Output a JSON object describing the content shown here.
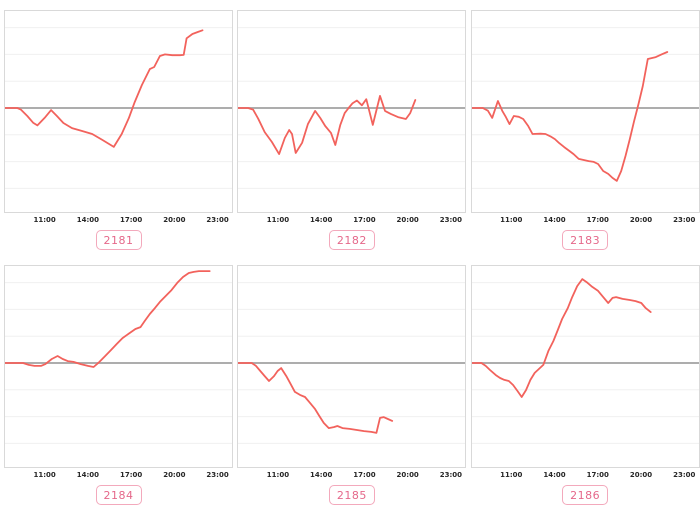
{
  "page": {
    "background": "#ffffff",
    "grid": "2 rows x 3 columns of sparkline charts"
  },
  "style": {
    "line_color": "#f2625c",
    "zero_line_color": "#adadad",
    "grid_line_color": "#f0f0f0",
    "plot_border_color": "#d9d9d9",
    "tick_label_color": "#262626",
    "badge_text_color": "#e5688a",
    "badge_border_color": "#f3a9bc"
  },
  "axis": {
    "tick_labels": [
      "11:00",
      "14:00",
      "17:00",
      "20:00",
      "23:00"
    ],
    "tick_hours": [
      11,
      14,
      17,
      20,
      23
    ],
    "range_hours": [
      8.25,
      24.0
    ],
    "note": "shared x-axis on all six charts; horizontal gridlines on; darker horizontal zero line"
  },
  "chart_data": [
    {
      "type": "line",
      "badge_label": "2181",
      "x_unit": "time of day (hours)",
      "y_unit": "relative value (zero line = 0, one gridline = 1)",
      "ylim": [
        -3.9,
        3.6
      ],
      "points": [
        [
          8.25,
          0
        ],
        [
          9.1,
          0
        ],
        [
          9.35,
          -0.06
        ],
        [
          9.8,
          -0.3
        ],
        [
          10.2,
          -0.55
        ],
        [
          10.5,
          -0.65
        ],
        [
          11.0,
          -0.37
        ],
        [
          11.45,
          -0.08
        ],
        [
          11.85,
          -0.3
        ],
        [
          12.3,
          -0.56
        ],
        [
          12.9,
          -0.75
        ],
        [
          13.6,
          -0.86
        ],
        [
          14.3,
          -0.97
        ],
        [
          15.0,
          -1.19
        ],
        [
          15.8,
          -1.45
        ],
        [
          16.35,
          -0.97
        ],
        [
          16.85,
          -0.37
        ],
        [
          17.25,
          0.22
        ],
        [
          17.75,
          0.86
        ],
        [
          18.3,
          1.45
        ],
        [
          18.6,
          1.53
        ],
        [
          19.0,
          1.94
        ],
        [
          19.35,
          2.0
        ],
        [
          19.85,
          1.97
        ],
        [
          20.4,
          1.97
        ],
        [
          20.65,
          1.98
        ],
        [
          20.85,
          2.6
        ],
        [
          21.25,
          2.76
        ],
        [
          21.65,
          2.84
        ],
        [
          21.95,
          2.9
        ]
      ]
    },
    {
      "type": "line",
      "badge_label": "2182",
      "x_unit": "time of day (hours)",
      "y_unit": "relative value (zero line = 0, one gridline = 1)",
      "ylim": [
        -3.9,
        3.6
      ],
      "points": [
        [
          8.25,
          0
        ],
        [
          8.95,
          0
        ],
        [
          9.3,
          -0.06
        ],
        [
          9.65,
          -0.4
        ],
        [
          10.1,
          -0.9
        ],
        [
          10.6,
          -1.27
        ],
        [
          11.1,
          -1.72
        ],
        [
          11.5,
          -1.12
        ],
        [
          11.8,
          -0.82
        ],
        [
          12.0,
          -0.97
        ],
        [
          12.25,
          -1.68
        ],
        [
          12.7,
          -1.3
        ],
        [
          13.1,
          -0.6
        ],
        [
          13.6,
          -0.11
        ],
        [
          13.95,
          -0.37
        ],
        [
          14.3,
          -0.67
        ],
        [
          14.7,
          -0.93
        ],
        [
          15.0,
          -1.38
        ],
        [
          15.35,
          -0.63
        ],
        [
          15.65,
          -0.19
        ],
        [
          15.95,
          0.02
        ],
        [
          16.2,
          0.18
        ],
        [
          16.5,
          0.28
        ],
        [
          16.85,
          0.1
        ],
        [
          17.15,
          0.33
        ],
        [
          17.6,
          -0.63
        ],
        [
          18.1,
          0.45
        ],
        [
          18.45,
          -0.11
        ],
        [
          18.85,
          -0.22
        ],
        [
          19.35,
          -0.34
        ],
        [
          19.9,
          -0.41
        ],
        [
          20.2,
          -0.19
        ],
        [
          20.55,
          0.3
        ]
      ]
    },
    {
      "type": "line",
      "badge_label": "2183",
      "x_unit": "time of day (hours)",
      "y_unit": "relative value (zero line = 0, one gridline = 1)",
      "ylim": [
        -3.9,
        3.6
      ],
      "points": [
        [
          8.25,
          0
        ],
        [
          9.0,
          0
        ],
        [
          9.35,
          -0.1
        ],
        [
          9.65,
          -0.37
        ],
        [
          10.05,
          0.26
        ],
        [
          10.35,
          -0.11
        ],
        [
          10.6,
          -0.34
        ],
        [
          10.85,
          -0.6
        ],
        [
          11.15,
          -0.3
        ],
        [
          11.5,
          -0.33
        ],
        [
          11.8,
          -0.41
        ],
        [
          12.15,
          -0.67
        ],
        [
          12.45,
          -0.97
        ],
        [
          13.0,
          -0.96
        ],
        [
          13.35,
          -0.97
        ],
        [
          13.7,
          -1.06
        ],
        [
          14.0,
          -1.16
        ],
        [
          14.3,
          -1.31
        ],
        [
          14.65,
          -1.46
        ],
        [
          15.0,
          -1.6
        ],
        [
          15.3,
          -1.72
        ],
        [
          15.65,
          -1.9
        ],
        [
          16.0,
          -1.94
        ],
        [
          16.35,
          -1.98
        ],
        [
          16.7,
          -2.01
        ],
        [
          17.0,
          -2.09
        ],
        [
          17.35,
          -2.35
        ],
        [
          17.7,
          -2.46
        ],
        [
          18.0,
          -2.61
        ],
        [
          18.3,
          -2.72
        ],
        [
          18.6,
          -2.35
        ],
        [
          18.9,
          -1.79
        ],
        [
          19.2,
          -1.16
        ],
        [
          19.5,
          -0.49
        ],
        [
          19.8,
          0.15
        ],
        [
          20.1,
          0.82
        ],
        [
          20.45,
          1.83
        ],
        [
          21.0,
          1.9
        ],
        [
          21.4,
          2.0
        ],
        [
          21.8,
          2.09
        ]
      ]
    },
    {
      "type": "line",
      "badge_label": "2184",
      "x_unit": "time of day (hours)",
      "y_unit": "relative value (zero line = 0, one gridline = 1)",
      "ylim": [
        -3.9,
        3.6
      ],
      "points": [
        [
          8.25,
          0
        ],
        [
          9.5,
          0
        ],
        [
          9.9,
          -0.07
        ],
        [
          10.3,
          -0.11
        ],
        [
          10.75,
          -0.11
        ],
        [
          11.05,
          -0.04
        ],
        [
          11.5,
          0.15
        ],
        [
          11.9,
          0.26
        ],
        [
          12.25,
          0.15
        ],
        [
          12.6,
          0.07
        ],
        [
          13.0,
          0.04
        ],
        [
          13.5,
          -0.04
        ],
        [
          14.0,
          -0.11
        ],
        [
          14.4,
          -0.15
        ],
        [
          14.8,
          0.04
        ],
        [
          15.2,
          0.26
        ],
        [
          15.6,
          0.48
        ],
        [
          16.0,
          0.71
        ],
        [
          16.4,
          0.93
        ],
        [
          16.9,
          1.12
        ],
        [
          17.3,
          1.27
        ],
        [
          17.65,
          1.34
        ],
        [
          17.95,
          1.57
        ],
        [
          18.3,
          1.83
        ],
        [
          18.65,
          2.05
        ],
        [
          19.0,
          2.28
        ],
        [
          19.4,
          2.5
        ],
        [
          19.8,
          2.72
        ],
        [
          20.2,
          2.99
        ],
        [
          20.6,
          3.21
        ],
        [
          21.0,
          3.36
        ],
        [
          21.35,
          3.4
        ],
        [
          21.7,
          3.43
        ],
        [
          22.1,
          3.43
        ],
        [
          22.45,
          3.43
        ]
      ]
    },
    {
      "type": "line",
      "badge_label": "2185",
      "x_unit": "time of day (hours)",
      "y_unit": "relative value (zero line = 0, one gridline = 1)",
      "ylim": [
        -3.9,
        3.6
      ],
      "points": [
        [
          8.25,
          0
        ],
        [
          9.2,
          0
        ],
        [
          9.5,
          -0.11
        ],
        [
          9.8,
          -0.3
        ],
        [
          10.1,
          -0.49
        ],
        [
          10.4,
          -0.67
        ],
        [
          10.75,
          -0.49
        ],
        [
          11.0,
          -0.3
        ],
        [
          11.25,
          -0.19
        ],
        [
          11.6,
          -0.49
        ],
        [
          11.9,
          -0.78
        ],
        [
          12.2,
          -1.08
        ],
        [
          12.55,
          -1.19
        ],
        [
          12.9,
          -1.27
        ],
        [
          13.2,
          -1.46
        ],
        [
          13.6,
          -1.72
        ],
        [
          13.9,
          -1.98
        ],
        [
          14.2,
          -2.24
        ],
        [
          14.55,
          -2.43
        ],
        [
          14.9,
          -2.39
        ],
        [
          15.15,
          -2.35
        ],
        [
          15.5,
          -2.43
        ],
        [
          16.0,
          -2.46
        ],
        [
          16.5,
          -2.5
        ],
        [
          17.0,
          -2.54
        ],
        [
          17.5,
          -2.57
        ],
        [
          17.85,
          -2.61
        ],
        [
          18.1,
          -2.05
        ],
        [
          18.35,
          -2.02
        ],
        [
          18.65,
          -2.09
        ],
        [
          18.95,
          -2.16
        ]
      ]
    },
    {
      "type": "line",
      "badge_label": "2186",
      "x_unit": "time of day (hours)",
      "y_unit": "relative value (zero line = 0, one gridline = 1)",
      "ylim": [
        -3.9,
        3.6
      ],
      "points": [
        [
          8.25,
          0
        ],
        [
          8.9,
          0
        ],
        [
          9.2,
          -0.11
        ],
        [
          9.5,
          -0.26
        ],
        [
          9.9,
          -0.45
        ],
        [
          10.2,
          -0.56
        ],
        [
          10.5,
          -0.63
        ],
        [
          10.8,
          -0.67
        ],
        [
          11.1,
          -0.82
        ],
        [
          11.4,
          -1.04
        ],
        [
          11.7,
          -1.27
        ],
        [
          12.0,
          -1.01
        ],
        [
          12.3,
          -0.63
        ],
        [
          12.6,
          -0.37
        ],
        [
          12.9,
          -0.22
        ],
        [
          13.2,
          -0.07
        ],
        [
          13.55,
          0.45
        ],
        [
          13.9,
          0.82
        ],
        [
          14.2,
          1.23
        ],
        [
          14.5,
          1.64
        ],
        [
          14.9,
          2.05
        ],
        [
          15.2,
          2.46
        ],
        [
          15.55,
          2.87
        ],
        [
          15.9,
          3.13
        ],
        [
          16.2,
          3.02
        ],
        [
          16.6,
          2.84
        ],
        [
          17.0,
          2.69
        ],
        [
          17.35,
          2.46
        ],
        [
          17.7,
          2.24
        ],
        [
          18.0,
          2.43
        ],
        [
          18.25,
          2.46
        ],
        [
          18.7,
          2.39
        ],
        [
          19.2,
          2.35
        ],
        [
          19.6,
          2.31
        ],
        [
          20.0,
          2.24
        ],
        [
          20.3,
          2.05
        ],
        [
          20.65,
          1.9
        ]
      ]
    }
  ]
}
